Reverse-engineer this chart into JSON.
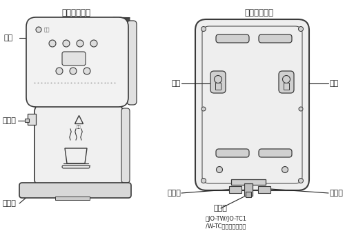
{
  "title_left": "侧面示意图：",
  "title_right": "背面示意图：",
  "label_panel": "面板",
  "label_spout": "出水嘴",
  "label_tray": "接水盘",
  "label_hang_left": "挂孔",
  "label_hang_right": "挂孔",
  "label_drain1": "排水口",
  "label_drain2": "排水口",
  "label_drain_note": "（JO-TW/JO-TC1\n/W-TC没有此排水口）",
  "label_inlet": "进水口",
  "bg_color": "#ffffff",
  "line_color": "#3a3a3a",
  "fill_body": "#f0f0f0",
  "fill_panel": "#e8e8e8",
  "fill_tray": "#d8d8d8",
  "fill_vent": "#c8c8c8",
  "text_color": "#222222"
}
